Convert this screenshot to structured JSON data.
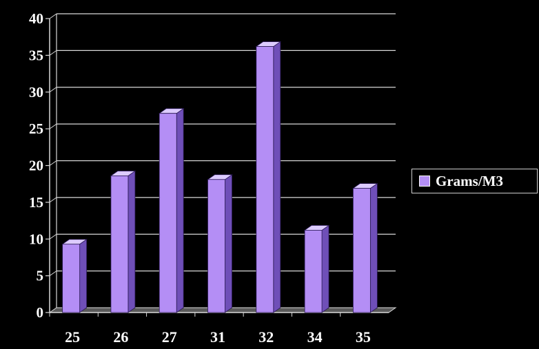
{
  "chart_data": {
    "type": "bar",
    "categories": [
      "25",
      "26",
      "27",
      "31",
      "32",
      "34",
      "35"
    ],
    "series": [
      {
        "name": "Grams/M3",
        "values": [
          9.3,
          18.6,
          27.1,
          18.1,
          36.2,
          11.2,
          16.9
        ]
      }
    ],
    "ylim": [
      0,
      40
    ],
    "yticks": [
      "0",
      "5",
      "10",
      "15",
      "20",
      "25",
      "30",
      "35",
      "40"
    ],
    "grid": true,
    "legend_position": "right",
    "colors": {
      "background": "#000000",
      "bar_front": "#b48ef5",
      "bar_side": "#6f4fb8",
      "bar_top": "#dccbff",
      "grid": "#d9d9d9"
    }
  }
}
